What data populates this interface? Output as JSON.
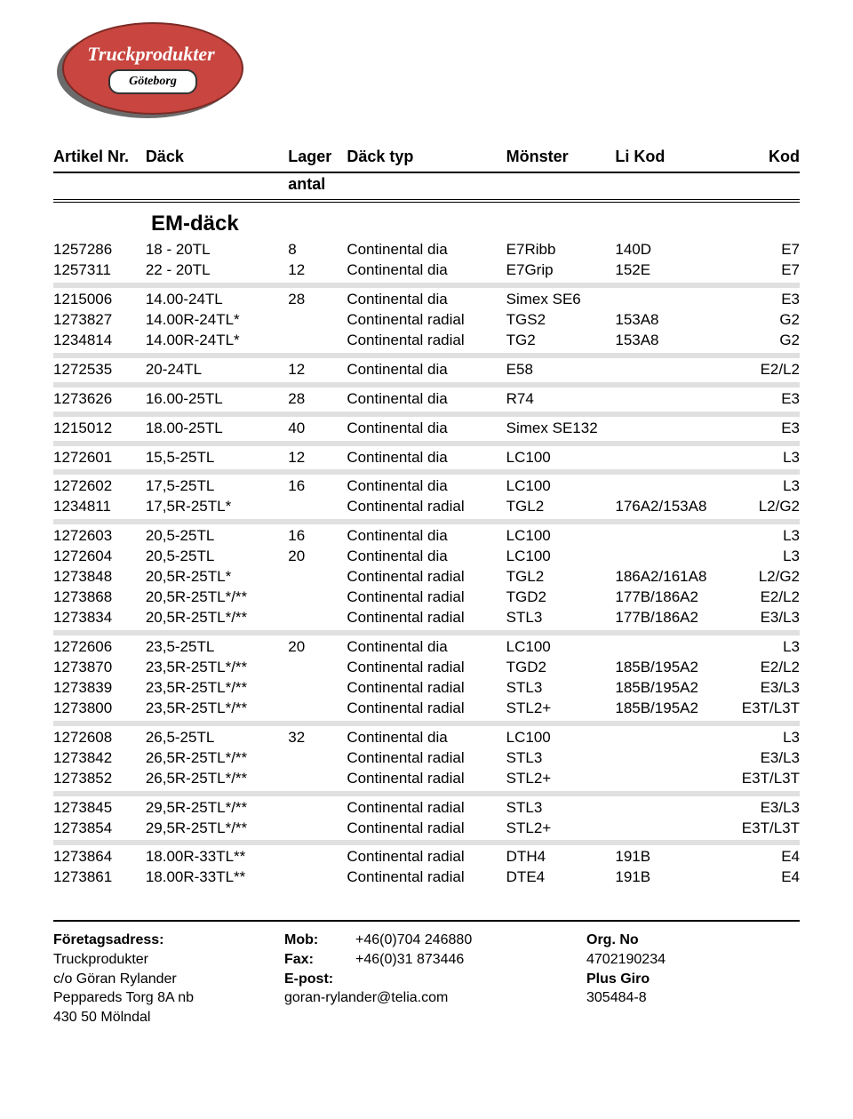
{
  "logo": {
    "line1": "Truckprodukter",
    "line2": "Göteborg"
  },
  "columns": {
    "artikel": "Artikel Nr.",
    "dack": "Däck",
    "lager": "Lager",
    "antal": "antal",
    "typ": "Däck typ",
    "monster": "Mönster",
    "li": "Li Kod",
    "kod": "Kod"
  },
  "section_title": "EM-däck",
  "groups": [
    [
      [
        "1257286",
        "18 - 20TL",
        "8",
        "Continental dia",
        "E7Ribb",
        "140D",
        "E7"
      ],
      [
        "1257311",
        "22 - 20TL",
        "12",
        "Continental dia",
        "E7Grip",
        "152E",
        "E7"
      ]
    ],
    [
      [
        "1215006",
        "14.00-24TL",
        "28",
        "Continental dia",
        "Simex SE6",
        "",
        "E3"
      ],
      [
        "1273827",
        "14.00R-24TL*",
        "",
        "Continental radial",
        "TGS2",
        "153A8",
        "G2"
      ],
      [
        "1234814",
        "14.00R-24TL*",
        "",
        "Continental radial",
        "TG2",
        "153A8",
        "G2"
      ]
    ],
    [
      [
        "1272535",
        "20-24TL",
        "12",
        "Continental dia",
        "E58",
        "",
        "E2/L2"
      ]
    ],
    [
      [
        "1273626",
        "16.00-25TL",
        "28",
        "Continental dia",
        "R74",
        "",
        "E3"
      ]
    ],
    [
      [
        "1215012",
        "18.00-25TL",
        "40",
        "Continental dia",
        "Simex SE132",
        "",
        "E3"
      ]
    ],
    [
      [
        "1272601",
        "15,5-25TL",
        "12",
        "Continental dia",
        "LC100",
        "",
        "L3"
      ]
    ],
    [
      [
        "1272602",
        "17,5-25TL",
        "16",
        "Continental dia",
        "LC100",
        "",
        "L3"
      ],
      [
        "1234811",
        "17,5R-25TL*",
        "",
        "Continental radial",
        "TGL2",
        "176A2/153A8",
        "L2/G2"
      ]
    ],
    [
      [
        "1272603",
        "20,5-25TL",
        "16",
        "Continental dia",
        "LC100",
        "",
        "L3"
      ],
      [
        "1272604",
        "20,5-25TL",
        "20",
        "Continental dia",
        "LC100",
        "",
        "L3"
      ],
      [
        "1273848",
        "20,5R-25TL*",
        "",
        "Continental radial",
        "TGL2",
        "186A2/161A8",
        "L2/G2"
      ],
      [
        "1273868",
        "20,5R-25TL*/**",
        "",
        "Continental radial",
        "TGD2",
        "177B/186A2",
        "E2/L2"
      ],
      [
        "1273834",
        "20,5R-25TL*/**",
        "",
        "Continental radial",
        "STL3",
        "177B/186A2",
        "E3/L3"
      ]
    ],
    [
      [
        "1272606",
        "23,5-25TL",
        "20",
        "Continental dia",
        "LC100",
        "",
        "L3"
      ],
      [
        "1273870",
        "23,5R-25TL*/**",
        "",
        "Continental radial",
        "TGD2",
        "185B/195A2",
        "E2/L2"
      ],
      [
        "1273839",
        "23,5R-25TL*/**",
        "",
        "Continental radial",
        "STL3",
        "185B/195A2",
        "E3/L3"
      ],
      [
        "1273800",
        "23,5R-25TL*/**",
        "",
        "Continental radial",
        "STL2+",
        "185B/195A2",
        "E3T/L3T"
      ]
    ],
    [
      [
        "1272608",
        "26,5-25TL",
        "32",
        "Continental dia",
        "LC100",
        "",
        "L3"
      ],
      [
        "1273842",
        "26,5R-25TL*/**",
        "",
        "Continental radial",
        "STL3",
        "",
        "E3/L3"
      ],
      [
        "1273852",
        "26,5R-25TL*/**",
        "",
        "Continental radial",
        "STL2+",
        "",
        "E3T/L3T"
      ]
    ],
    [
      [
        "1273845",
        "29,5R-25TL*/**",
        "",
        "Continental radial",
        "STL3",
        "",
        "E3/L3"
      ],
      [
        "1273854",
        "29,5R-25TL*/**",
        "",
        "Continental radial",
        "STL2+",
        "",
        "E3T/L3T"
      ]
    ],
    [
      [
        "1273864",
        "18.00R-33TL**",
        "",
        "Continental radial",
        "DTH4",
        "191B",
        "E4"
      ],
      [
        "1273861",
        "18.00R-33TL**",
        "",
        "Continental radial",
        "DTE4",
        "191B",
        "E4"
      ]
    ]
  ],
  "footer": {
    "col1": {
      "heading": "Företagsadress:",
      "lines": [
        "Truckprodukter",
        "c/o Göran Rylander",
        "Peppareds Torg 8A nb",
        "430 50 Mölndal"
      ]
    },
    "col2": {
      "mob_label": "Mob:",
      "mob_value": "+46(0)704 246880",
      "fax_label": "Fax:",
      "fax_value": "+46(0)31 873446",
      "epost_label": "E-post:",
      "epost_value": "goran-rylander@telia.com"
    },
    "col3": {
      "org_label": "Org. No",
      "org_value": "4702190234",
      "pg_label": "Plus Giro",
      "pg_value": "305484-8"
    }
  }
}
